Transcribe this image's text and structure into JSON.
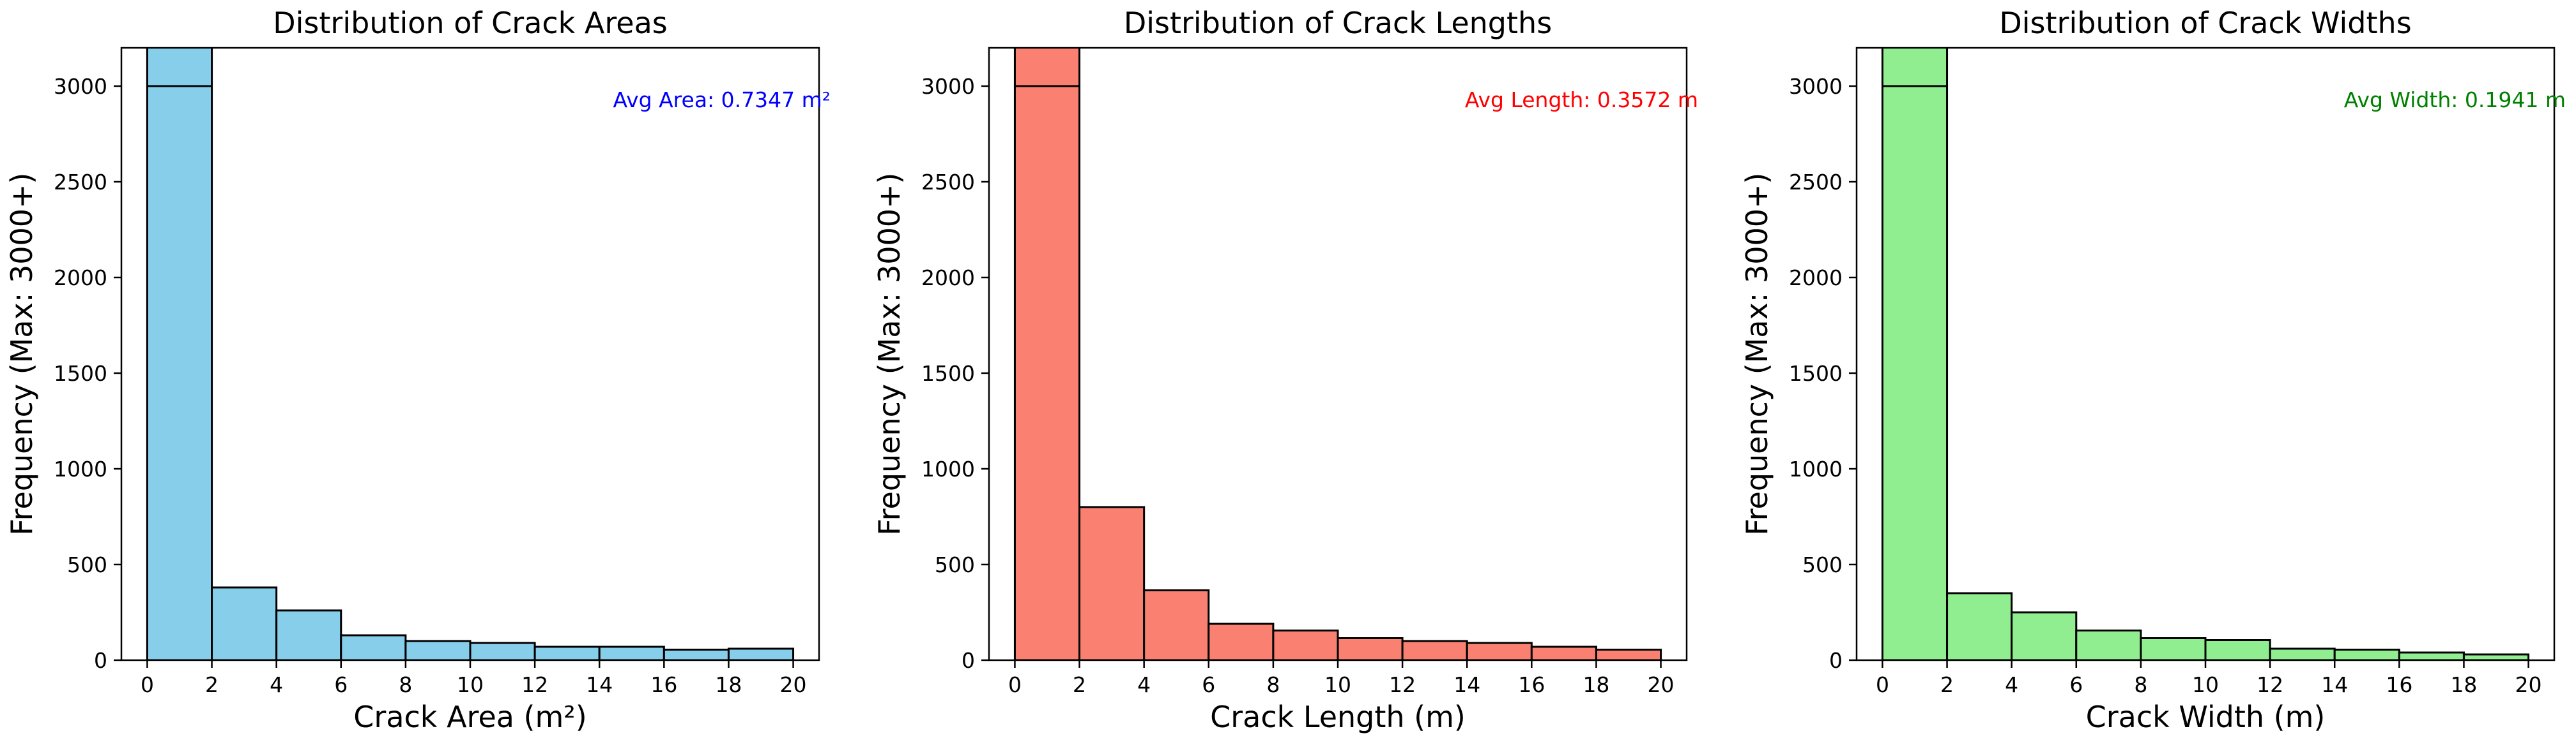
{
  "chart_data": [
    {
      "type": "bar",
      "title": "Distribution of Crack Areas",
      "xlabel": "Crack Area (m²)",
      "ylabel": "Frequency (Max: 3000+)",
      "bin_edges": [
        0,
        2,
        4,
        6,
        8,
        10,
        12,
        14,
        16,
        18,
        20
      ],
      "values": [
        3000,
        380,
        260,
        130,
        100,
        90,
        70,
        70,
        55,
        60
      ],
      "xlim": [
        -0.8,
        20.8
      ],
      "ylim": [
        0,
        3200
      ],
      "xticks": [
        0,
        2,
        4,
        6,
        8,
        10,
        12,
        14,
        16,
        18,
        20
      ],
      "yticks": [
        0,
        500,
        1000,
        1500,
        2000,
        2500,
        3000
      ],
      "color": "#87ceeb",
      "annotation": {
        "text": "Avg Area: 0.7347 m²",
        "color": "#0000ff"
      },
      "grid": false
    },
    {
      "type": "bar",
      "title": "Distribution of Crack Lengths",
      "xlabel": "Crack Length (m)",
      "ylabel": "Frequency (Max: 3000+)",
      "bin_edges": [
        0,
        2,
        4,
        6,
        8,
        10,
        12,
        14,
        16,
        18,
        20
      ],
      "values": [
        3000,
        800,
        365,
        190,
        155,
        115,
        100,
        90,
        70,
        55
      ],
      "xlim": [
        -0.8,
        20.8
      ],
      "ylim": [
        0,
        3200
      ],
      "xticks": [
        0,
        2,
        4,
        6,
        8,
        10,
        12,
        14,
        16,
        18,
        20
      ],
      "yticks": [
        0,
        500,
        1000,
        1500,
        2000,
        2500,
        3000
      ],
      "color": "#fa8072",
      "annotation": {
        "text": "Avg Length: 0.3572 m",
        "color": "#ff0000"
      },
      "grid": false
    },
    {
      "type": "bar",
      "title": "Distribution of Crack Widths",
      "xlabel": "Crack Width (m)",
      "ylabel": "Frequency (Max: 3000+)",
      "bin_edges": [
        0,
        2,
        4,
        6,
        8,
        10,
        12,
        14,
        16,
        18,
        20
      ],
      "values": [
        3000,
        350,
        250,
        155,
        115,
        105,
        60,
        55,
        40,
        30
      ],
      "xlim": [
        -0.8,
        20.8
      ],
      "ylim": [
        0,
        3200
      ],
      "xticks": [
        0,
        2,
        4,
        6,
        8,
        10,
        12,
        14,
        16,
        18,
        20
      ],
      "yticks": [
        0,
        500,
        1000,
        1500,
        2000,
        2500,
        3000
      ],
      "color": "#90ee90",
      "annotation": {
        "text": "Avg Width: 0.1941 m",
        "color": "#008000"
      },
      "grid": false
    }
  ]
}
